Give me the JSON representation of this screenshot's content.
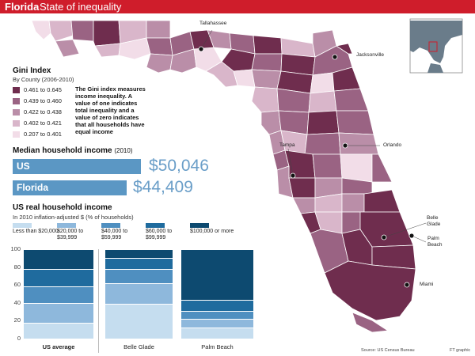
{
  "header": {
    "state": "Florida",
    "title": "State of inequality"
  },
  "gini": {
    "title": "Gini Index",
    "subtitle": "By County (2006-2010)",
    "legend": [
      {
        "label": "0.461 to 0.645",
        "color": "#6f2d4e"
      },
      {
        "label": "0.439 to 0.460",
        "color": "#9a6383"
      },
      {
        "label": "0.422 to 0.438",
        "color": "#ba8ea8"
      },
      {
        "label": "0.402 to 0.421",
        "color": "#d9b6ca"
      },
      {
        "label": "0.207 to 0.401",
        "color": "#f2dde8"
      }
    ],
    "description": "The Gini index measures income inequality. A value of one indicates total inequality and a value of zero indicates that all households have equal income"
  },
  "median": {
    "title": "Median household income",
    "year": "(2010)",
    "rows": [
      {
        "label": "US",
        "display": "$50,046",
        "value": 50046
      },
      {
        "label": "Florida",
        "display": "$44,409",
        "value": 44409
      }
    ]
  },
  "income": {
    "title": "US real household income",
    "subtitle": "In 2010 inflation-adjusted $ (% of households)"
  },
  "chart_data": {
    "type": "bar",
    "title": "US real household income",
    "subtitle": "In 2010 inflation-adjusted $ (% of households)",
    "stacked": true,
    "categories": [
      "US average",
      "Belle Glade",
      "Palm Beach"
    ],
    "ylim": [
      0,
      100
    ],
    "yticks": [
      "0",
      "20",
      "40",
      "60",
      "80",
      "100"
    ],
    "series": [
      {
        "name": "Less than $20,000",
        "color": "#c5ddef",
        "values": [
          18,
          39,
          12
        ]
      },
      {
        "name": "$20,000 to $39,999",
        "color": "#8eb8dc",
        "values": [
          22,
          23,
          10
        ]
      },
      {
        "name": "$40,000 to $59,999",
        "color": "#4f8fc0",
        "values": [
          18,
          16,
          9
        ]
      },
      {
        "name": "$60,000 to $99,999",
        "color": "#1f6b9e",
        "values": [
          20,
          12,
          12
        ]
      },
      {
        "name": "$100,000 or more",
        "color": "#0d4a70",
        "values": [
          22,
          10,
          57
        ]
      }
    ]
  },
  "map": {
    "cities": [
      {
        "name": "Tallahassee"
      },
      {
        "name": "Jacksonville"
      },
      {
        "name": "Tampa"
      },
      {
        "name": "Orlando"
      },
      {
        "name": "Belle Glade"
      },
      {
        "name": "Palm Beach"
      },
      {
        "name": "Miami"
      }
    ]
  },
  "footer": {
    "source": "Source: US Census Bureau",
    "credit": "FT graphic"
  }
}
